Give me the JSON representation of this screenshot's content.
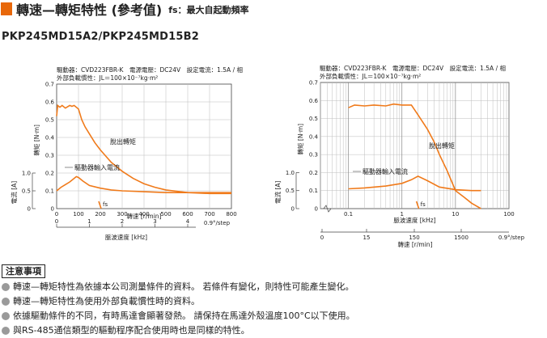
{
  "header": {
    "title": "轉速—轉矩特性 (參考值)",
    "subtitle": "fs：最大自起動頻率"
  },
  "model": "PKP245MD15A2/PKP245MD15B2",
  "colors": {
    "accent": "#e8680a",
    "curve": "#f07a1a",
    "grid": "#bdbdbd",
    "bullet": "#9a9a9a"
  },
  "chart_data": [
    {
      "type": "line",
      "info_line1": "驅動器：CVD223FBR-K　電源電壓：DC24V　設定電流：1.5A / 相",
      "info_line2": "外部負載慣性：JL＝100×10⁻⁷kg·m²",
      "ylabel": "轉矩 [N·m]",
      "ylim": [
        0,
        0.7
      ],
      "yticks": [
        "0",
        "0.1",
        "0.2",
        "0.3",
        "0.4",
        "0.5",
        "0.6",
        "0.7"
      ],
      "current_ylabel": "電流 [A]",
      "current_yticks": [
        "0",
        "0.5",
        "1.0"
      ],
      "xlabel": "轉速 [r/min]",
      "xlim": [
        0,
        800
      ],
      "xticks": [
        "0",
        "100",
        "200",
        "300",
        "400",
        "500",
        "600",
        "700",
        "800"
      ],
      "freq_xlabel": "脈波速度 [kHz]",
      "freq_ticks": [
        "0",
        "1",
        "2",
        "3",
        "4"
      ],
      "step_label": "0.9°/step",
      "series": [
        {
          "name": "脫出轉矩",
          "x": [
            0,
            5,
            15,
            25,
            40,
            60,
            70,
            80,
            100,
            115,
            130,
            150,
            175,
            200,
            250,
            300,
            350,
            400,
            450,
            500,
            600,
            700,
            800
          ],
          "y": [
            0.52,
            0.58,
            0.57,
            0.58,
            0.565,
            0.58,
            0.575,
            0.58,
            0.56,
            0.5,
            0.46,
            0.42,
            0.37,
            0.33,
            0.26,
            0.21,
            0.17,
            0.14,
            0.12,
            0.105,
            0.09,
            0.085,
            0.085
          ]
        },
        {
          "name": "驅動器輸入電流",
          "x": [
            0,
            20,
            40,
            60,
            80,
            90,
            100,
            120,
            150,
            200,
            250,
            300,
            400,
            500,
            600,
            700,
            800
          ],
          "y": [
            0.1,
            0.12,
            0.135,
            0.15,
            0.17,
            0.18,
            0.175,
            0.155,
            0.13,
            0.115,
            0.105,
            0.1,
            0.095,
            0.09,
            0.09,
            0.09,
            0.09
          ]
        }
      ],
      "fs_label": "fs",
      "fs_x": 200
    },
    {
      "type": "line",
      "info_line1": "驅動器：CVD223FBR-K　電源電壓：DC24V　設定電流：1.5A / 相",
      "info_line2": "外部負載慣性：JL＝100×10⁻⁷kg·m²",
      "ylabel": "轉矩 [N·m]",
      "ylim": [
        0,
        0.7
      ],
      "yticks": [
        "0",
        "0.1",
        "0.2",
        "0.3",
        "0.4",
        "0.5",
        "0.6",
        "0.7"
      ],
      "current_ylabel": "電流 [A]",
      "current_yticks": [
        "0",
        "0.5",
        "1.0"
      ],
      "xlabel": "脈波速度 [kHz]",
      "x_scale": "log",
      "xlim": [
        0.03,
        100
      ],
      "xticks": [
        "0.1",
        "1",
        "10",
        "100"
      ],
      "speed_xlabel": "轉速 [r/min]",
      "speed_ticks": [
        "0",
        "15",
        "150",
        "1500"
      ],
      "step_label": "0.9°/step",
      "series": [
        {
          "name": "脫出轉矩",
          "x": [
            0.1,
            0.13,
            0.2,
            0.3,
            0.5,
            0.7,
            1,
            1.5,
            2,
            3,
            4,
            5,
            7,
            10,
            15,
            20,
            30
          ],
          "y": [
            0.56,
            0.575,
            0.57,
            0.575,
            0.57,
            0.58,
            0.575,
            0.575,
            0.52,
            0.44,
            0.37,
            0.3,
            0.21,
            0.1,
            0.06,
            0.03,
            0.0
          ]
        },
        {
          "name": "驅動器輸入電流",
          "x": [
            0.1,
            0.2,
            0.5,
            1,
            1.5,
            2,
            3,
            5,
            10,
            20,
            30
          ],
          "y": [
            0.11,
            0.115,
            0.125,
            0.14,
            0.16,
            0.18,
            0.155,
            0.12,
            0.105,
            0.1,
            0.1
          ]
        }
      ],
      "fs_label": "fs",
      "fs_x": 2
    }
  ],
  "notes": {
    "title": "注意事項",
    "items": [
      "轉速—轉矩特性為依據本公司測量條件的資料。 若條件有變化，則特性可能產生變化。",
      "轉速—轉矩特性為使用外部負載慣性時的資料。",
      "依據驅動條件的不同，有時馬達會顯著發熱。 請保持在馬達外殼溫度100°C以下使用。",
      "與RS-485通信類型的驅動程序配合使用時也是同樣的特性。"
    ]
  }
}
